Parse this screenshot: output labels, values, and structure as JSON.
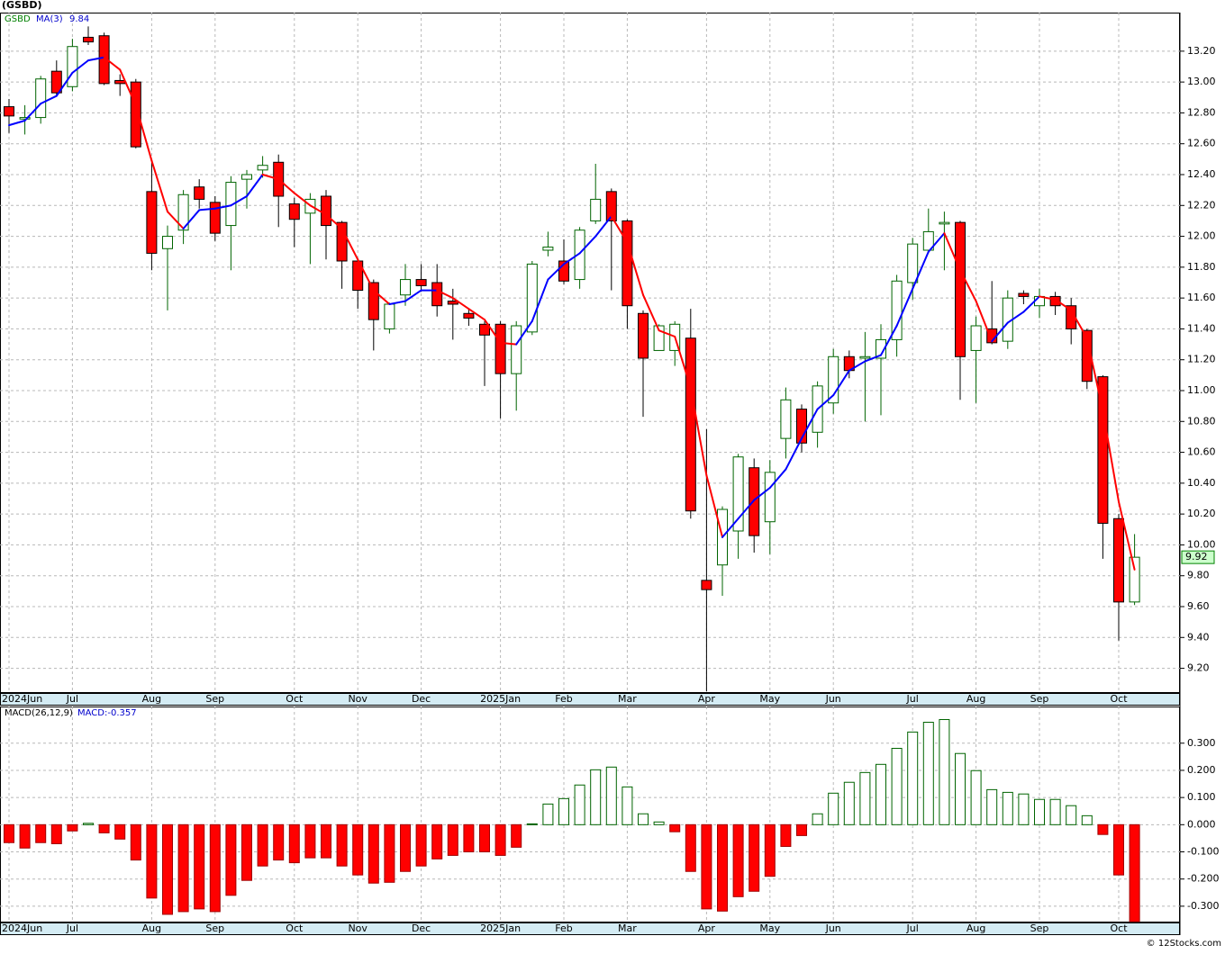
{
  "chart_data": [
    {
      "type": "candlestick",
      "title": "(GSBD)",
      "categories": [
        "2024Jun",
        null,
        null,
        null,
        "Jul",
        null,
        null,
        null,
        null,
        "Aug",
        null,
        null,
        null,
        "Sep",
        null,
        null,
        null,
        null,
        "Oct",
        null,
        null,
        null,
        "Nov",
        null,
        null,
        null,
        "Dec",
        null,
        null,
        null,
        null,
        "2025Jan",
        null,
        null,
        null,
        "Feb",
        null,
        null,
        null,
        "Mar",
        null,
        null,
        null,
        null,
        "Apr",
        null,
        null,
        null,
        "May",
        null,
        null,
        null,
        "Jun",
        null,
        null,
        null,
        null,
        "Jul",
        null,
        null,
        null,
        "Aug",
        null,
        null,
        null,
        "Sep",
        null,
        null,
        null,
        null,
        "Oct",
        null
      ],
      "series": [
        {
          "name": "GSBD",
          "color": "#008000",
          "up_color": "#006400",
          "down_color": "#ff0000",
          "open": [
            12.84,
            12.76,
            12.77,
            13.07,
            12.97,
            13.29,
            13.3,
            13.01,
            13.0,
            12.29,
            11.92,
            12.04,
            12.32,
            12.22,
            12.07,
            12.37,
            12.43,
            12.48,
            12.21,
            12.15,
            12.26,
            12.09,
            11.84,
            11.7,
            11.4,
            11.62,
            11.72,
            11.7,
            11.58,
            11.5,
            11.43,
            11.43,
            11.11,
            11.38,
            11.91,
            11.84,
            11.72,
            12.1,
            12.29,
            12.1,
            11.5,
            11.26,
            11.26,
            11.34,
            9.77,
            9.87,
            10.09,
            10.5,
            10.15,
            10.69,
            10.88,
            10.73,
            10.92,
            11.22,
            11.21,
            11.21,
            11.33,
            11.7,
            11.91,
            12.08,
            12.09,
            11.26,
            11.4,
            11.32,
            11.63,
            11.55,
            11.61,
            11.55,
            11.39,
            11.09,
            10.17,
            9.63
          ],
          "high": [
            12.89,
            12.85,
            13.04,
            13.14,
            13.28,
            13.36,
            13.32,
            13.05,
            13.02,
            12.48,
            12.07,
            12.3,
            12.37,
            12.26,
            12.39,
            12.43,
            12.52,
            12.53,
            12.25,
            12.28,
            12.3,
            12.1,
            11.86,
            11.72,
            11.57,
            11.82,
            11.82,
            11.82,
            11.66,
            11.53,
            11.45,
            11.45,
            11.45,
            11.84,
            12.03,
            11.98,
            12.06,
            12.47,
            12.31,
            12.11,
            11.52,
            11.43,
            11.45,
            11.53,
            10.75,
            10.25,
            10.59,
            10.56,
            10.55,
            11.02,
            10.91,
            11.06,
            11.27,
            11.26,
            11.38,
            11.43,
            11.75,
            11.99,
            12.18,
            12.16,
            12.1,
            11.48,
            11.71,
            11.65,
            11.65,
            11.66,
            11.64,
            11.6,
            11.4,
            11.1,
            10.2,
            10.07
          ],
          "low": [
            12.67,
            12.66,
            12.73,
            12.91,
            12.94,
            13.24,
            12.98,
            12.91,
            12.57,
            11.78,
            11.52,
            11.95,
            12.18,
            11.97,
            11.78,
            12.18,
            12.38,
            12.06,
            11.93,
            11.82,
            11.85,
            11.66,
            11.53,
            11.26,
            11.37,
            11.55,
            11.64,
            11.48,
            11.33,
            11.42,
            11.03,
            10.82,
            10.87,
            11.36,
            11.87,
            11.69,
            11.66,
            12.08,
            11.65,
            11.4,
            10.83,
            11.26,
            11.16,
            10.17,
            9.05,
            9.67,
            9.91,
            9.95,
            9.94,
            10.56,
            10.6,
            10.63,
            10.85,
            11.08,
            10.8,
            10.84,
            11.22,
            11.59,
            11.89,
            11.78,
            10.94,
            10.92,
            11.3,
            11.27,
            11.56,
            11.47,
            11.49,
            11.3,
            11.01,
            9.91,
            9.38,
            9.61
          ],
          "close": [
            12.78,
            12.77,
            13.02,
            12.93,
            13.23,
            13.26,
            12.99,
            12.99,
            12.58,
            11.89,
            12.0,
            12.27,
            12.24,
            12.02,
            12.35,
            12.4,
            12.46,
            12.26,
            12.11,
            12.24,
            12.07,
            11.84,
            11.65,
            11.46,
            11.56,
            11.72,
            11.68,
            11.55,
            11.56,
            11.47,
            11.36,
            11.11,
            11.42,
            11.82,
            11.93,
            11.71,
            12.04,
            12.24,
            12.1,
            11.55,
            11.21,
            11.42,
            11.43,
            10.22,
            9.71,
            10.23,
            10.57,
            10.06,
            10.47,
            10.94,
            10.66,
            11.03,
            11.22,
            11.13,
            11.22,
            11.33,
            11.71,
            11.95,
            12.03,
            12.09,
            11.22,
            11.42,
            11.31,
            11.6,
            11.61,
            11.61,
            11.55,
            11.4,
            11.06,
            10.14,
            9.63,
            9.92
          ]
        },
        {
          "name": "MA(3)",
          "type": "line",
          "color": "#0000cc",
          "up_color": "#0000ff",
          "down_color": "#ff0000",
          "values": [
            12.72,
            12.75,
            12.86,
            12.91,
            13.06,
            13.14,
            13.16,
            13.08,
            12.85,
            12.49,
            12.16,
            12.05,
            12.17,
            12.18,
            12.2,
            12.26,
            12.4,
            12.37,
            12.28,
            12.2,
            12.14,
            12.05,
            11.85,
            11.65,
            11.56,
            11.58,
            11.65,
            11.65,
            11.6,
            11.53,
            11.46,
            11.31,
            11.3,
            11.45,
            11.72,
            11.82,
            11.89,
            12.0,
            12.13,
            11.96,
            11.62,
            11.39,
            11.35,
            11.02,
            10.45,
            10.05,
            10.17,
            10.29,
            10.37,
            10.49,
            10.69,
            10.88,
            10.97,
            11.13,
            11.19,
            11.23,
            11.42,
            11.66,
            11.9,
            12.02,
            11.78,
            11.58,
            11.32,
            11.44,
            11.51,
            11.61,
            11.59,
            11.52,
            11.34,
            10.87,
            10.28,
            9.84
          ]
        }
      ],
      "ylim": [
        9.04,
        13.45
      ],
      "yticks": [
        {
          "value": 9.2,
          "label": "9.20"
        },
        {
          "value": 9.4,
          "label": "9.40"
        },
        {
          "value": 9.6,
          "label": "9.60"
        },
        {
          "value": 9.8,
          "label": "9.80"
        },
        {
          "value": 10.0,
          "label": "10.00"
        },
        {
          "value": 10.2,
          "label": "10.20"
        },
        {
          "value": 10.4,
          "label": "10.40"
        },
        {
          "value": 10.6,
          "label": "10.60"
        },
        {
          "value": 10.8,
          "label": "10.80"
        },
        {
          "value": 11.0,
          "label": "11.00"
        },
        {
          "value": 11.2,
          "label": "11.20"
        },
        {
          "value": 11.4,
          "label": "11.40"
        },
        {
          "value": 11.6,
          "label": "11.60"
        },
        {
          "value": 11.8,
          "label": "11.80"
        },
        {
          "value": 12.0,
          "label": "12.00"
        },
        {
          "value": 12.2,
          "label": "12.20"
        },
        {
          "value": 12.4,
          "label": "12.40"
        },
        {
          "value": 12.6,
          "label": "12.60"
        },
        {
          "value": 12.8,
          "label": "12.80"
        },
        {
          "value": 13.0,
          "label": "13.00"
        },
        {
          "value": 13.2,
          "label": "13.20"
        }
      ],
      "grid": true
    },
    {
      "type": "bar",
      "title": "MACD(26,12,9)",
      "categories": [
        "2024Jun",
        null,
        null,
        null,
        "Jul",
        null,
        null,
        null,
        null,
        "Aug",
        null,
        null,
        null,
        "Sep",
        null,
        null,
        null,
        null,
        "Oct",
        null,
        null,
        null,
        "Nov",
        null,
        null,
        null,
        "Dec",
        null,
        null,
        null,
        null,
        "2025Jan",
        null,
        null,
        null,
        "Feb",
        null,
        null,
        null,
        "Mar",
        null,
        null,
        null,
        null,
        "Apr",
        null,
        null,
        null,
        "May",
        null,
        null,
        null,
        "Jun",
        null,
        null,
        null,
        null,
        "Jul",
        null,
        null,
        null,
        "Aug",
        null,
        null,
        null,
        "Sep",
        null,
        null,
        null,
        null,
        "Oct",
        null
      ],
      "series": [
        {
          "name": "MACD",
          "legend_label": "MACD:-0.357",
          "color": "#0000cc",
          "pos_color": "#006400",
          "neg_color": "#ff0000",
          "values": [
            -0.066,
            -0.086,
            -0.066,
            -0.07,
            -0.023,
            0.005,
            -0.03,
            -0.053,
            -0.13,
            -0.27,
            -0.33,
            -0.32,
            -0.31,
            -0.32,
            -0.26,
            -0.205,
            -0.152,
            -0.13,
            -0.14,
            -0.122,
            -0.122,
            -0.152,
            -0.185,
            -0.215,
            -0.212,
            -0.172,
            -0.152,
            -0.126,
            -0.113,
            -0.1,
            -0.1,
            -0.113,
            -0.083,
            0.003,
            0.076,
            0.096,
            0.146,
            0.202,
            0.212,
            0.139,
            0.04,
            0.01,
            -0.026,
            -0.172,
            -0.31,
            -0.318,
            -0.265,
            -0.245,
            -0.19,
            -0.08,
            -0.04,
            0.04,
            0.116,
            0.156,
            0.192,
            0.222,
            0.281,
            0.341,
            0.377,
            0.387,
            0.262,
            0.199,
            0.129,
            0.119,
            0.113,
            0.093,
            0.093,
            0.07,
            0.033,
            -0.036,
            -0.185,
            -0.357
          ]
        }
      ],
      "ylim": [
        -0.36,
        0.435
      ],
      "yticks": [
        {
          "value": -0.3,
          "label": "-0.300"
        },
        {
          "value": -0.2,
          "label": "-0.200"
        },
        {
          "value": -0.1,
          "label": "-0.100"
        },
        {
          "value": 0,
          "label": "0.000"
        },
        {
          "value": 0.1,
          "label": "0.100"
        },
        {
          "value": 0.2,
          "label": "0.200"
        },
        {
          "value": 0.3,
          "label": "0.300"
        }
      ],
      "grid": true
    }
  ],
  "footer": "© 12Stocks.com"
}
